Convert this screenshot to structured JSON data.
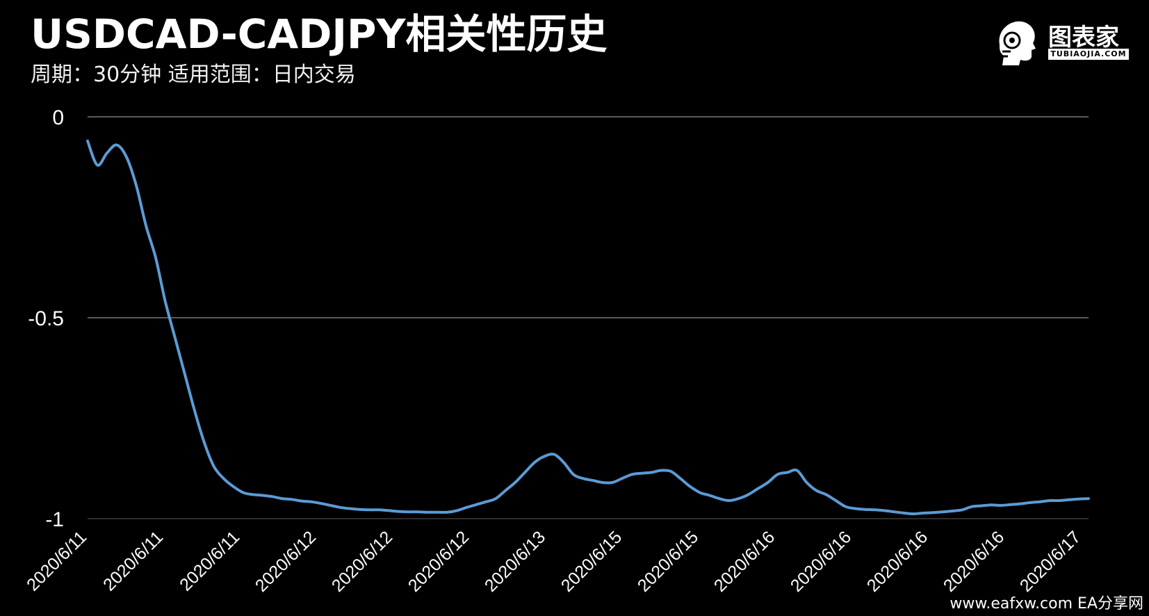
{
  "header": {
    "title": "USDCAD-CADJPY相关性历史",
    "subtitle": "周期：30分钟  适用范围：日内交易"
  },
  "logo": {
    "name": "图表家",
    "sub": "TUBIAOJIA.COM"
  },
  "watermark": "www.eafxw.com   EA分享网",
  "colors": {
    "background": "#000000",
    "line": "#5b9bd5",
    "grid": "#5a5a5a"
  },
  "chart_data": {
    "type": "line",
    "title": "USDCAD-CADJPY相关性历史",
    "subtitle": "周期：30分钟  适用范围：日内交易",
    "ylim": [
      -1,
      0
    ],
    "yticks": [
      {
        "value": 0,
        "label": "0"
      },
      {
        "value": -0.5,
        "label": "-0.5"
      },
      {
        "value": -1,
        "label": "-1"
      }
    ],
    "xticks": [
      "2020/6/11",
      "2020/6/11",
      "2020/6/11",
      "2020/6/12",
      "2020/6/12",
      "2020/6/12",
      "2020/6/13",
      "2020/6/15",
      "2020/6/15",
      "2020/6/16",
      "2020/6/16",
      "2020/6/16",
      "2020/6/16",
      "2020/6/17"
    ],
    "grid": true,
    "legend": "none",
    "values": [
      -0.06,
      -0.12,
      -0.09,
      -0.07,
      -0.1,
      -0.17,
      -0.27,
      -0.35,
      -0.46,
      -0.55,
      -0.64,
      -0.73,
      -0.81,
      -0.87,
      -0.9,
      -0.92,
      -0.935,
      -0.94,
      -0.942,
      -0.945,
      -0.95,
      -0.952,
      -0.956,
      -0.958,
      -0.962,
      -0.967,
      -0.972,
      -0.975,
      -0.977,
      -0.978,
      -0.978,
      -0.98,
      -0.982,
      -0.983,
      -0.983,
      -0.984,
      -0.984,
      -0.984,
      -0.98,
      -0.972,
      -0.965,
      -0.958,
      -0.95,
      -0.93,
      -0.91,
      -0.885,
      -0.86,
      -0.845,
      -0.84,
      -0.86,
      -0.89,
      -0.9,
      -0.905,
      -0.91,
      -0.91,
      -0.9,
      -0.89,
      -0.887,
      -0.885,
      -0.88,
      -0.882,
      -0.9,
      -0.92,
      -0.935,
      -0.942,
      -0.95,
      -0.955,
      -0.95,
      -0.94,
      -0.925,
      -0.91,
      -0.89,
      -0.885,
      -0.88,
      -0.91,
      -0.93,
      -0.94,
      -0.955,
      -0.97,
      -0.975,
      -0.977,
      -0.978,
      -0.98,
      -0.983,
      -0.986,
      -0.988,
      -0.986,
      -0.985,
      -0.983,
      -0.981,
      -0.978,
      -0.97,
      -0.968,
      -0.966,
      -0.967,
      -0.965,
      -0.963,
      -0.96,
      -0.958,
      -0.955,
      -0.955,
      -0.953,
      -0.951,
      -0.95
    ]
  }
}
